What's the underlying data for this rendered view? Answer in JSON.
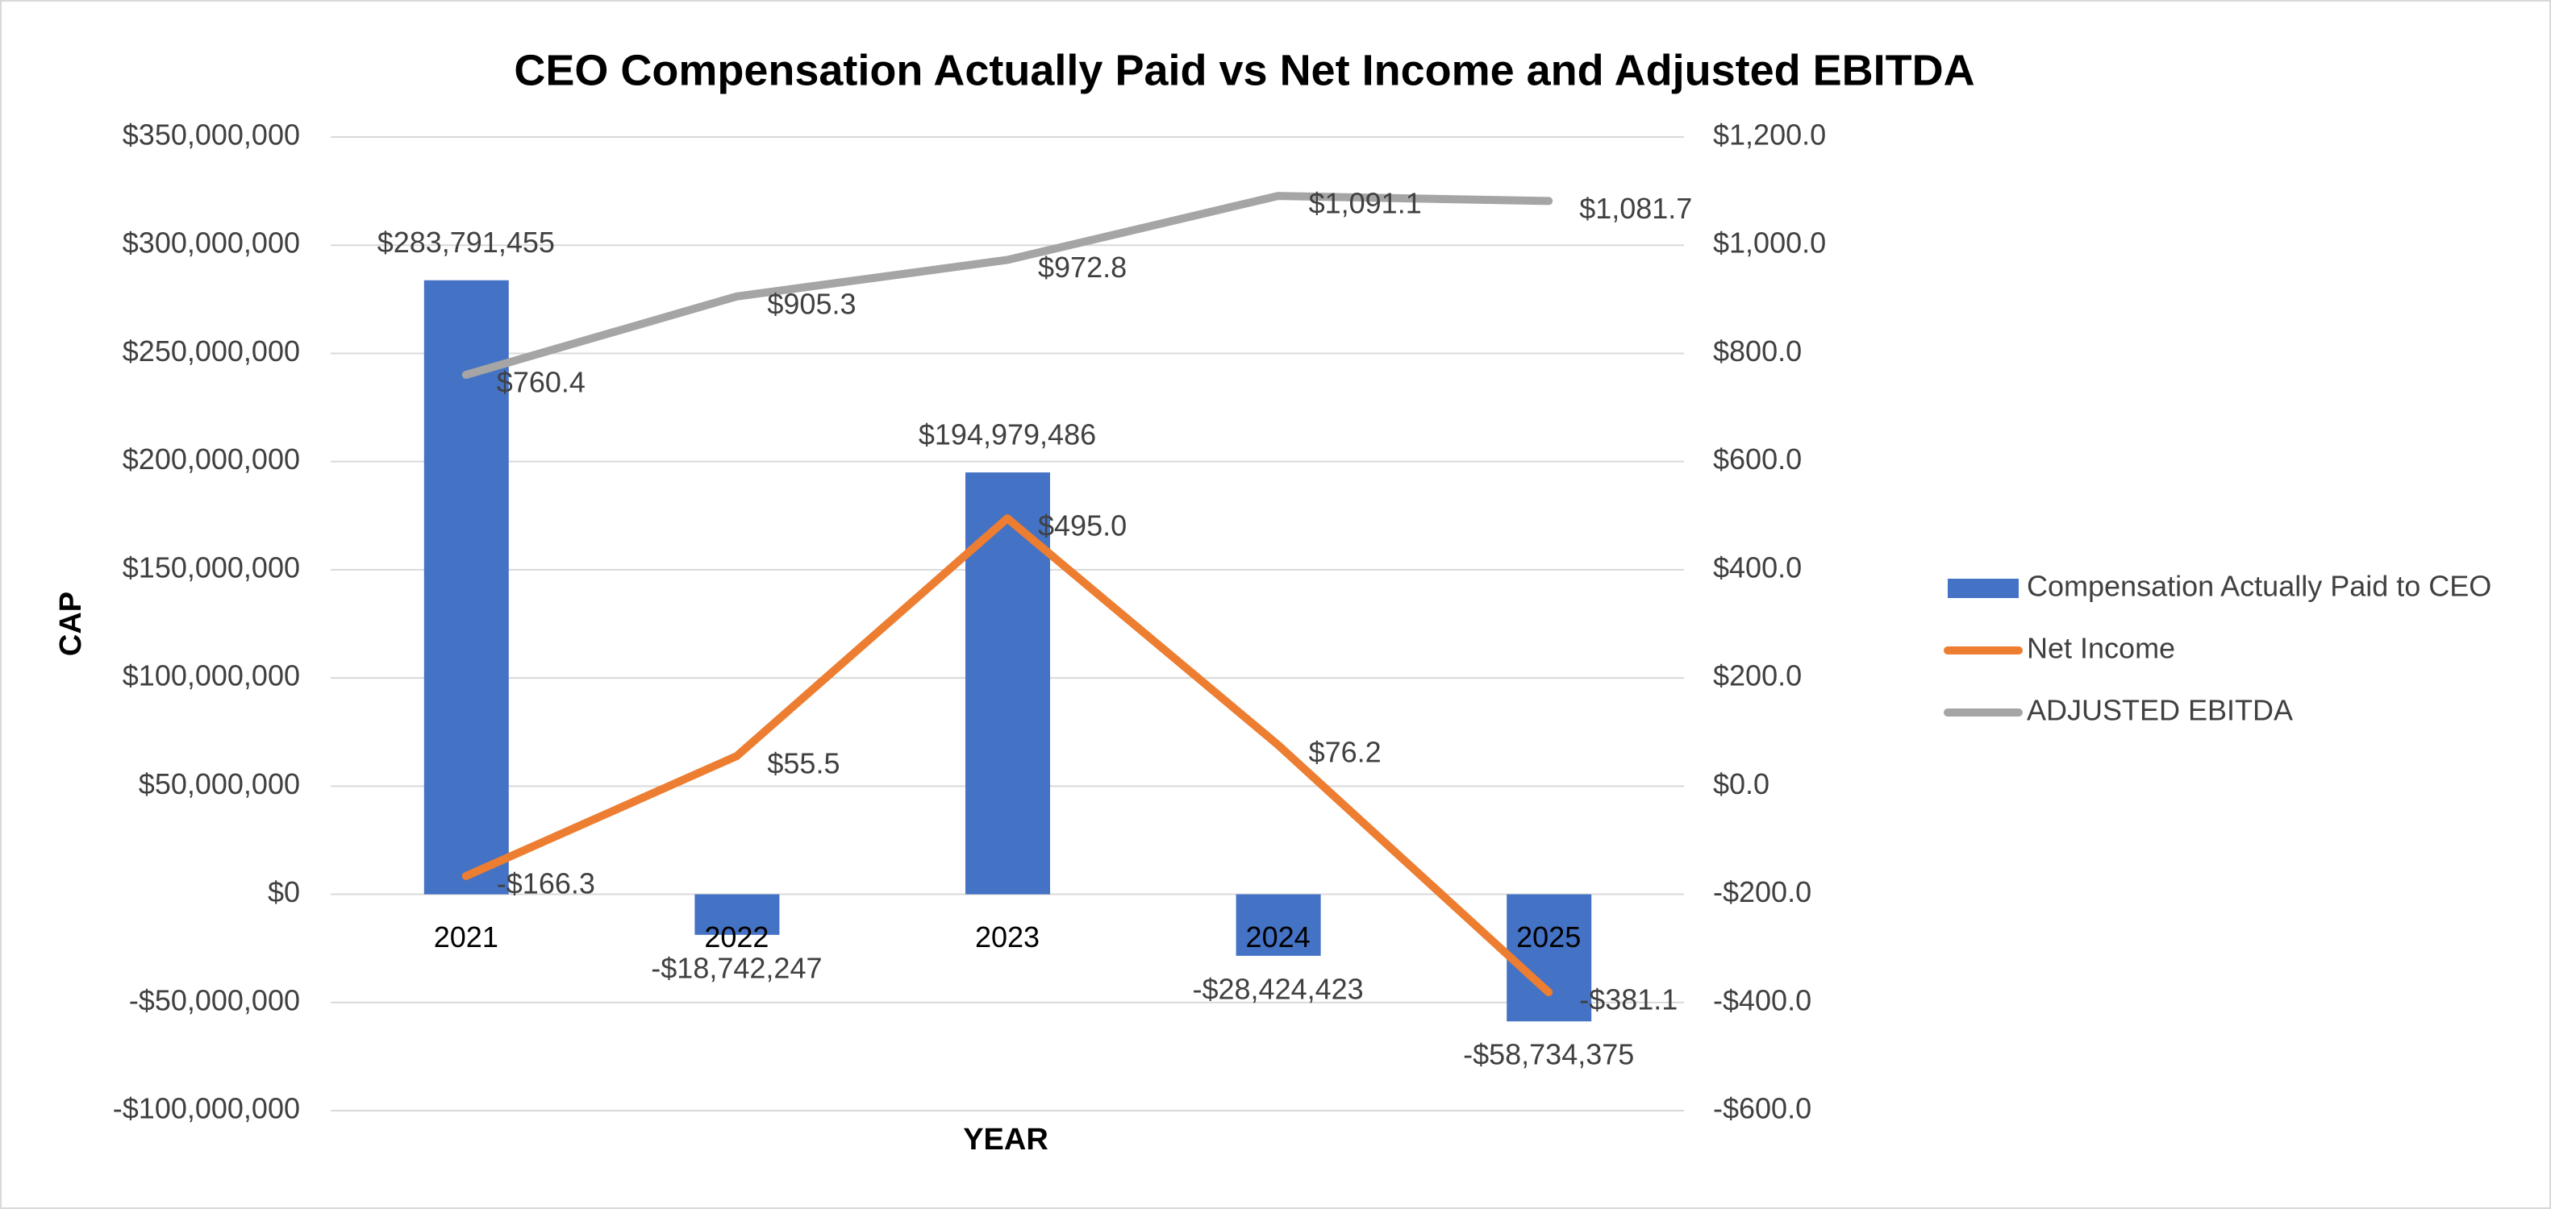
{
  "chart_data": {
    "type": "bar",
    "title": "CEO Compensation Actually Paid vs Net Income and Adjusted EBITDA",
    "y_label": "CAP",
    "x_label": "YEAR",
    "categories": [
      "2021",
      "2022",
      "2023",
      "2024",
      "2025"
    ],
    "series": [
      {
        "name": "Compensation Actually Paid to CEO",
        "type": "bar",
        "color": "#4472c4",
        "values": [
          283791455,
          -18742247,
          194979486,
          -28424423,
          -58734375
        ],
        "value_labels": [
          "$283,791,455",
          "-$18,742,247",
          "$194,979,486",
          "-$28,424,423",
          "-$58,734,375"
        ]
      },
      {
        "name": "Net Income",
        "type": "line",
        "axis": "y2",
        "color": "#ed7d31",
        "values": [
          -166.3,
          55.5,
          495.0,
          76.2,
          -381.1
        ],
        "value_labels": [
          "-$166.3",
          "$55.5",
          "$495.0",
          "$76.2",
          "-$381.1"
        ]
      },
      {
        "name": "ADJUSTED EBITDA",
        "type": "line",
        "axis": "y2",
        "color": "#a5a5a5",
        "values": [
          760.4,
          905.3,
          972.8,
          1091.1,
          1081.7
        ],
        "value_labels": [
          "$760.4",
          "$905.3",
          "$972.8",
          "$1,091.1",
          "$1,081.7"
        ]
      }
    ],
    "ylim": [
      -100000000,
      350000000
    ],
    "yticks": [
      {
        "value": -100000000,
        "label": "-$100,000,000"
      },
      {
        "value": -50000000,
        "label": "-$50,000,000"
      },
      {
        "value": 0,
        "label": "$0"
      },
      {
        "value": 50000000,
        "label": "$50,000,000"
      },
      {
        "value": 100000000,
        "label": "$100,000,000"
      },
      {
        "value": 150000000,
        "label": "$150,000,000"
      },
      {
        "value": 200000000,
        "label": "$200,000,000"
      },
      {
        "value": 250000000,
        "label": "$250,000,000"
      },
      {
        "value": 300000000,
        "label": "$300,000,000"
      },
      {
        "value": 350000000,
        "label": "$350,000,000"
      }
    ],
    "y2lim": [
      -600,
      1200
    ],
    "y2ticks": [
      {
        "value": -600,
        "label": "-$600.0"
      },
      {
        "value": -400,
        "label": "-$400.0"
      },
      {
        "value": -200,
        "label": "-$200.0"
      },
      {
        "value": 0,
        "label": "$0.0"
      },
      {
        "value": 200,
        "label": "$200.0"
      },
      {
        "value": 400,
        "label": "$400.0"
      },
      {
        "value": 600,
        "label": "$600.0"
      },
      {
        "value": 800,
        "label": "$800.0"
      },
      {
        "value": 1000,
        "label": "$1,000.0"
      },
      {
        "value": 1200,
        "label": "$1,200.0"
      }
    ],
    "grid": true,
    "legend": "right"
  }
}
